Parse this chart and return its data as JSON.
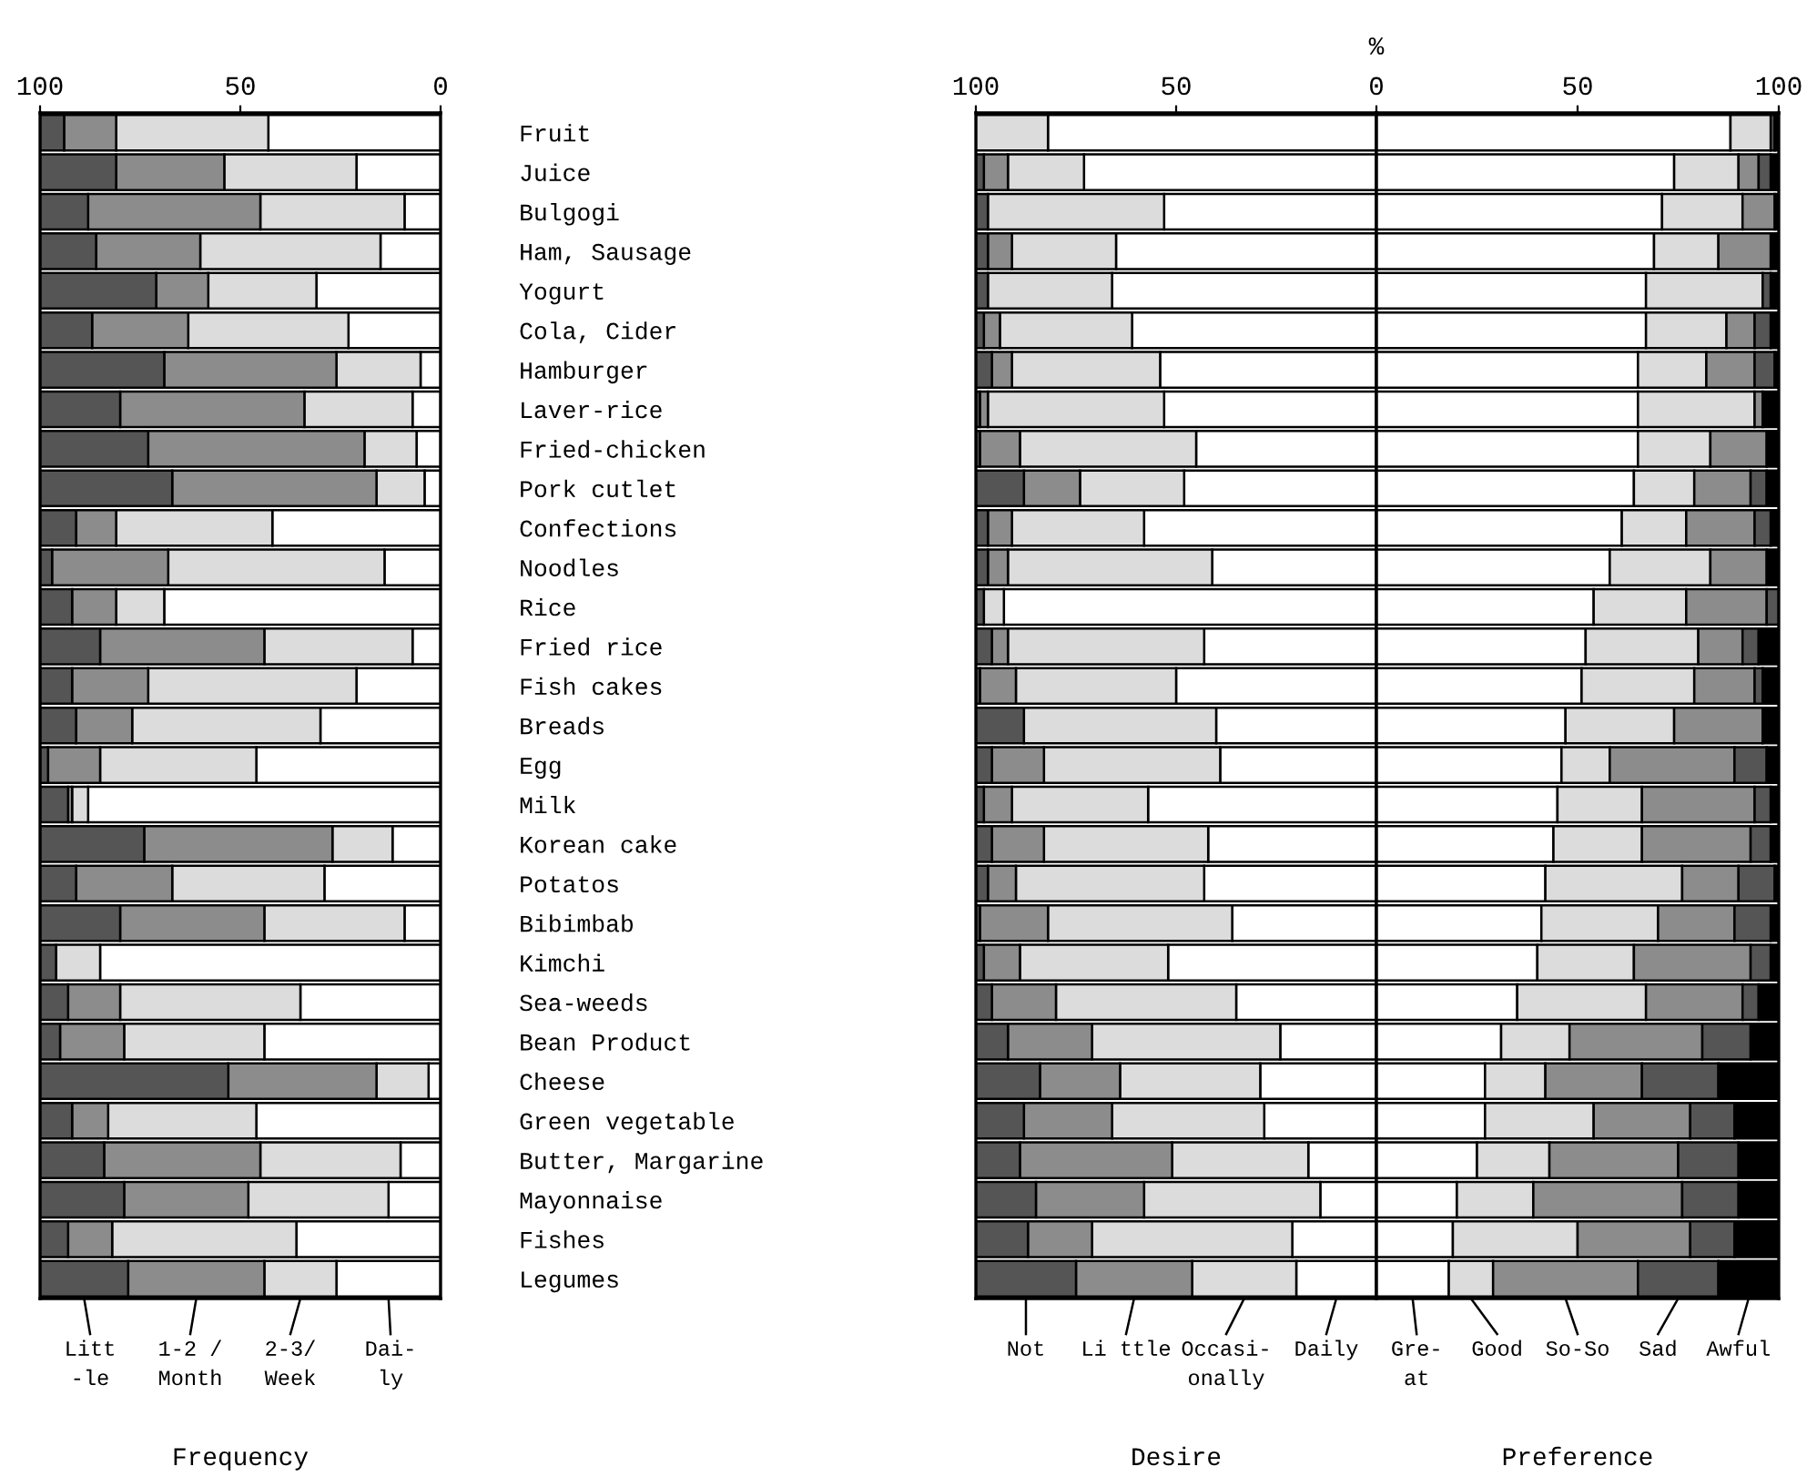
{
  "chart_data": [
    {
      "type": "bar",
      "orientation": "horizontal",
      "stacked": true,
      "xlabel": "Frequency",
      "legend": "bottom",
      "grid": false,
      "categories": [
        "Fruit",
        "Juice",
        "Bulgogi",
        "Ham, Sausage",
        "Yogurt",
        "Cola, Cider",
        "Hamburger",
        "Laver-rice",
        "Fried-chicken",
        "Pork cutlet",
        "Confections",
        "Noodles",
        "Rice",
        "Fried rice",
        "Fish cakes",
        "Breads",
        "Egg",
        "Milk",
        "Korean cake",
        "Potatos",
        "Bibimbab",
        "Kimchi",
        "Sea-weeds",
        "Bean Product",
        "Cheese",
        "Green vegetable",
        "Butter, Margarine",
        "Mayonnaise",
        "Fishes",
        "Legumes"
      ],
      "xlim": [
        100,
        0
      ],
      "xticks": [
        100,
        50,
        0
      ],
      "series": [
        {
          "name": "Dai-\nly",
          "color": "#ffffff",
          "values": [
            43,
            21,
            9,
            15,
            31,
            23,
            5,
            7,
            6,
            4,
            42,
            14,
            69,
            7,
            21,
            30,
            46,
            88,
            12,
            29,
            9,
            85,
            35,
            44,
            3,
            46,
            10,
            13,
            36,
            26
          ]
        },
        {
          "name": "2-3/\nWeek",
          "color": "#dcdcdc",
          "values": [
            38,
            33,
            36,
            45,
            27,
            40,
            21,
            27,
            13,
            12,
            39,
            54,
            12,
            37,
            52,
            47,
            39,
            4,
            15,
            38,
            35,
            11,
            45,
            35,
            13,
            37,
            35,
            35,
            46,
            18
          ]
        },
        {
          "name": "1-2 /\nMonth",
          "color": "#8c8c8c",
          "values": [
            13,
            27,
            43,
            26,
            13,
            24,
            43,
            46,
            54,
            51,
            10,
            29,
            11,
            41,
            19,
            14,
            13,
            1,
            47,
            24,
            36,
            0,
            13,
            16,
            37,
            9,
            39,
            31,
            11,
            34
          ]
        },
        {
          "name": "Litt\n-le",
          "color": "#555555",
          "values": [
            6,
            19,
            12,
            14,
            29,
            13,
            31,
            20,
            27,
            33,
            9,
            3,
            8,
            15,
            8,
            9,
            2,
            7,
            26,
            9,
            20,
            4,
            7,
            5,
            47,
            8,
            16,
            21,
            7,
            22
          ]
        }
      ]
    },
    {
      "type": "bar",
      "orientation": "horizontal",
      "stacked": true,
      "title": "%",
      "xlabel": "Desire",
      "legend": "bottom",
      "grid": false,
      "tick_labels": "x",
      "categories": [
        null,
        null,
        null,
        null,
        null,
        null,
        null,
        null,
        null,
        null,
        null,
        null,
        null,
        null,
        null,
        null,
        null,
        null,
        null,
        null,
        null,
        null,
        null,
        null,
        null,
        null,
        null,
        null,
        null,
        null
      ],
      "xlim": [
        100,
        0
      ],
      "xticks": [
        100,
        50,
        0
      ],
      "series": [
        {
          "name": "Daily",
          "color": "#ffffff",
          "values": [
            82,
            73,
            53,
            65,
            66,
            61,
            54,
            53,
            45,
            48,
            58,
            41,
            93,
            43,
            50,
            40,
            39,
            57,
            42,
            43,
            36,
            52,
            35,
            24,
            29,
            28,
            17,
            14,
            21,
            20
          ]
        },
        {
          "name": "Occasi-\nonally",
          "color": "#dcdcdc",
          "values": [
            18,
            19,
            44,
            26,
            31,
            33,
            37,
            44,
            44,
            26,
            33,
            51,
            5,
            49,
            40,
            48,
            44,
            34,
            41,
            47,
            46,
            37,
            45,
            47,
            35,
            38,
            34,
            44,
            50,
            26
          ]
        },
        {
          "name": "Li ttle",
          "color": "#8c8c8c",
          "values": [
            0,
            6,
            0,
            6,
            0,
            4,
            5,
            2,
            10,
            14,
            6,
            5,
            0,
            4,
            9,
            0,
            13,
            7,
            13,
            7,
            17,
            9,
            16,
            21,
            20,
            22,
            38,
            27,
            16,
            29
          ]
        },
        {
          "name": "Not",
          "color": "#555555",
          "values": [
            0,
            2,
            3,
            3,
            3,
            2,
            4,
            1,
            1,
            12,
            3,
            3,
            2,
            4,
            1,
            12,
            4,
            2,
            4,
            3,
            1,
            2,
            4,
            8,
            16,
            12,
            11,
            15,
            13,
            25
          ]
        }
      ]
    },
    {
      "type": "bar",
      "orientation": "horizontal",
      "stacked": true,
      "xlabel": "Preference",
      "legend": "bottom",
      "grid": false,
      "tick_labels": "x",
      "categories": [
        null,
        null,
        null,
        null,
        null,
        null,
        null,
        null,
        null,
        null,
        null,
        null,
        null,
        null,
        null,
        null,
        null,
        null,
        null,
        null,
        null,
        null,
        null,
        null,
        null,
        null,
        null,
        null,
        null,
        null
      ],
      "xlim": [
        0,
        100
      ],
      "xticks": [
        50,
        100
      ],
      "series": [
        {
          "name": "Gre-\nat",
          "color": "#ffffff",
          "values": [
            88,
            74,
            71,
            69,
            67,
            67,
            65,
            65,
            65,
            64,
            61,
            58,
            54,
            52,
            51,
            47,
            46,
            45,
            44,
            42,
            41,
            40,
            35,
            31,
            27,
            27,
            25,
            20,
            19,
            18
          ]
        },
        {
          "name": "Good",
          "color": "#dcdcdc",
          "values": [
            10,
            16,
            20,
            16,
            29,
            20,
            17,
            29,
            18,
            15,
            16,
            25,
            23,
            28,
            28,
            27,
            12,
            21,
            22,
            34,
            29,
            24,
            32,
            17,
            15,
            27,
            18,
            19,
            31,
            11
          ]
        },
        {
          "name": "So-So",
          "color": "#8c8c8c",
          "values": [
            0,
            5,
            8,
            13,
            0,
            7,
            12,
            2,
            14,
            14,
            17,
            14,
            20,
            11,
            15,
            22,
            31,
            28,
            27,
            14,
            19,
            29,
            24,
            33,
            24,
            24,
            32,
            37,
            28,
            36
          ]
        },
        {
          "name": "Sad",
          "color": "#555555",
          "values": [
            1,
            3,
            0,
            0,
            2,
            4,
            5,
            0,
            0,
            4,
            4,
            0,
            3,
            4,
            2,
            0,
            8,
            4,
            5,
            9,
            9,
            5,
            4,
            12,
            19,
            11,
            15,
            14,
            11,
            20
          ]
        },
        {
          "name": "Awful",
          "color": "#000000",
          "values": [
            1,
            2,
            1,
            2,
            2,
            2,
            1,
            4,
            3,
            3,
            2,
            3,
            0,
            5,
            4,
            4,
            3,
            2,
            2,
            1,
            2,
            2,
            5,
            7,
            15,
            11,
            10,
            10,
            11,
            15
          ]
        }
      ]
    }
  ]
}
